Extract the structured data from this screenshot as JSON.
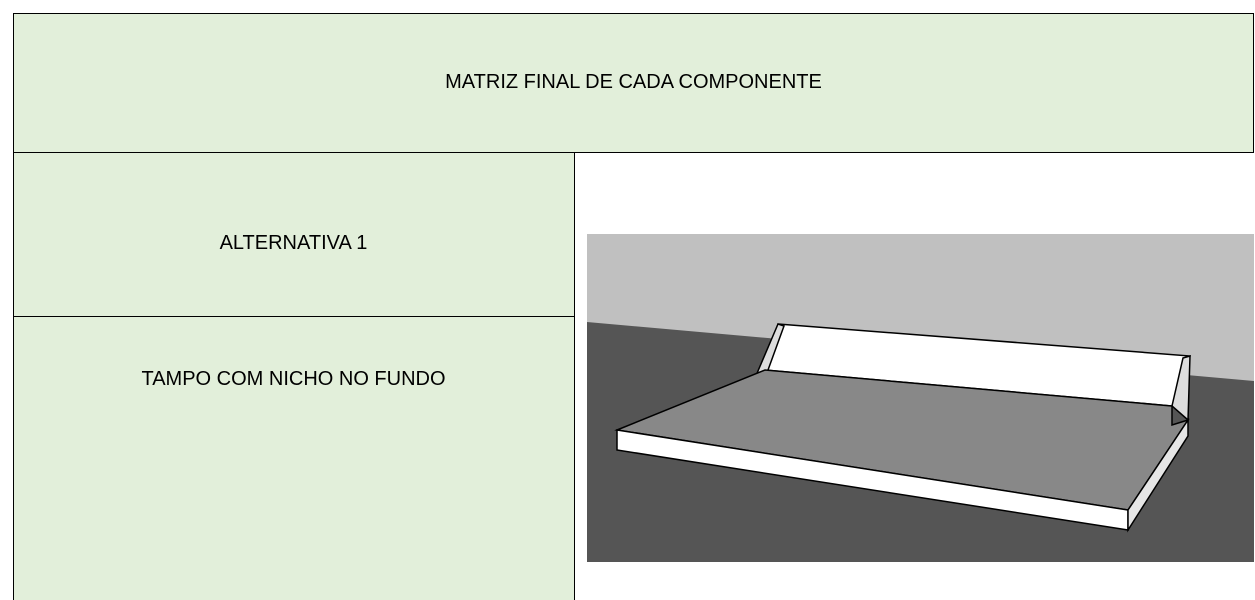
{
  "table": {
    "title": "MATRIZ FINAL DE CADA COMPONENTE",
    "rows": [
      [
        "ALTERNATIVA 1"
      ],
      [
        "TAMPO COM NICHO NO FUNDO"
      ]
    ]
  }
}
